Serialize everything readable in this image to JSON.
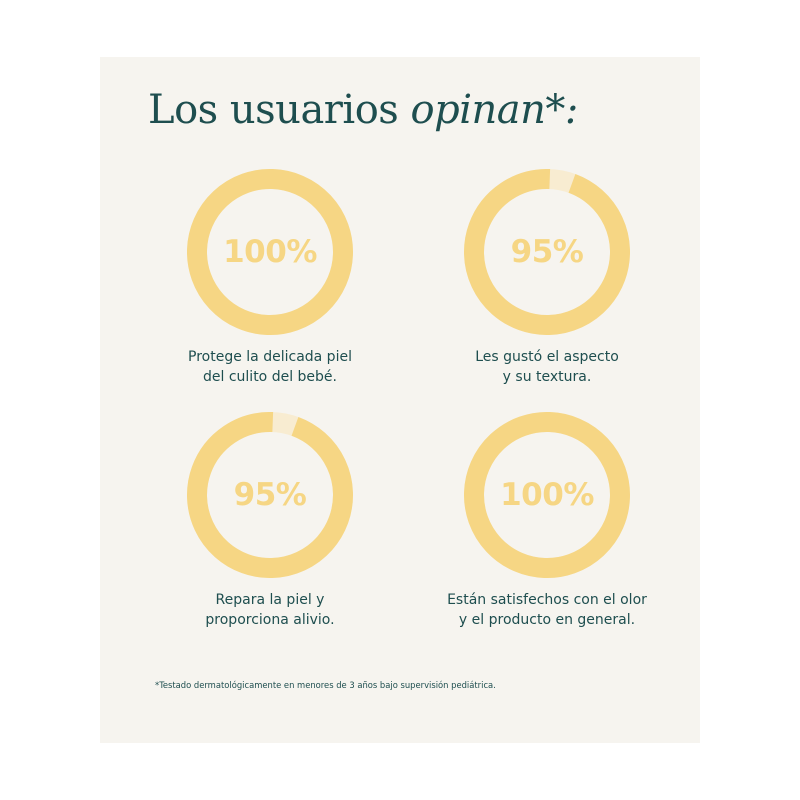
{
  "heading": {
    "text": "Los usuarios ",
    "emphasis": "opinan*:"
  },
  "colors": {
    "ring": "#f6d684",
    "ring_track": "#f8ecd1",
    "text": "#1e4e4f",
    "background": "#f6f4ef"
  },
  "stats": [
    {
      "value": "100%",
      "fill": 1.0,
      "caption_line1": "Protege la delicada piel",
      "caption_line2": "del culito del bebé."
    },
    {
      "value": "95%",
      "fill": 0.95,
      "caption_line1": "Les gustó el aspecto",
      "caption_line2": "y su textura."
    },
    {
      "value": "95%",
      "fill": 0.95,
      "caption_line1": "Repara la piel y",
      "caption_line2": "proporciona alivio."
    },
    {
      "value": "100%",
      "fill": 1.0,
      "caption_line1": "Están satisfechos con el olor",
      "caption_line2": "y el producto en general."
    }
  ],
  "footnote": "*Testado dermatológicamente en menores de 3 años bajo supervisión pediátrica."
}
